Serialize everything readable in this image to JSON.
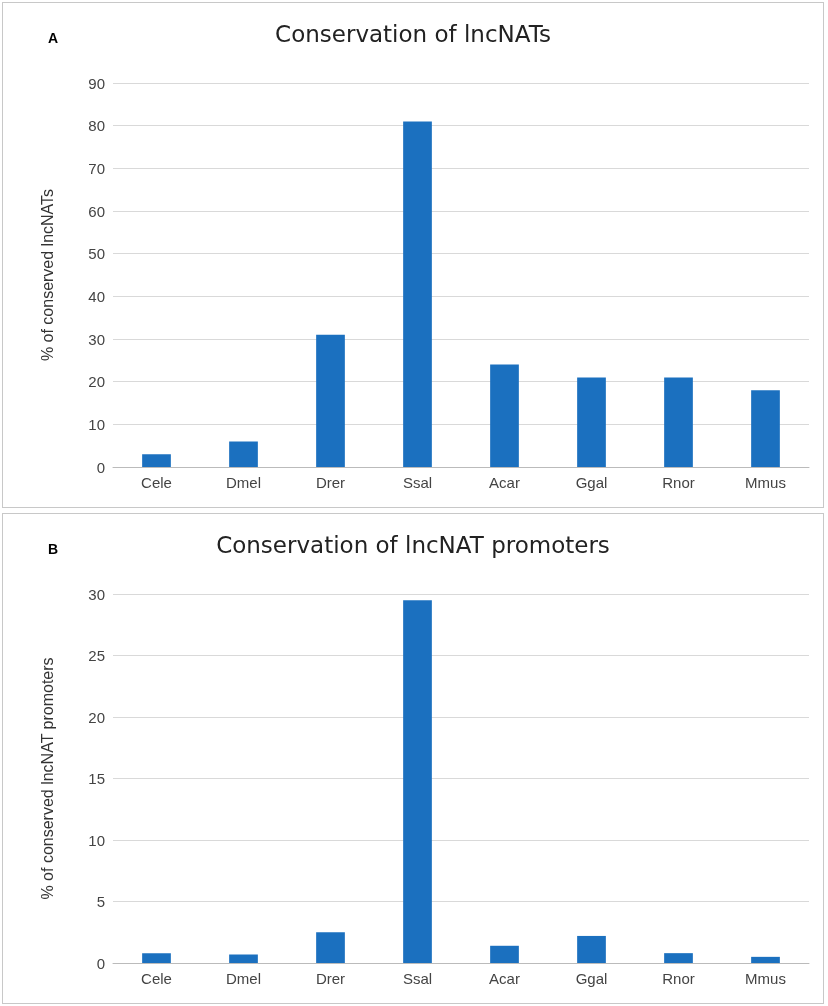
{
  "chart_data": [
    {
      "type": "bar",
      "title": "Conservation of lncNATs",
      "ylabel": "% of conserved lncNATs",
      "annotations": [
        "A"
      ],
      "categories": [
        "Cele",
        "Dmel",
        "Drer",
        "Ssal",
        "Acar",
        "Ggal",
        "Rnor",
        "Mmus"
      ],
      "values": [
        3,
        6,
        31,
        81,
        24,
        21,
        21,
        18
      ],
      "color": "#1b70bf",
      "ylim": [
        0,
        90
      ],
      "yticks": [
        0,
        10,
        20,
        30,
        40,
        50,
        60,
        70,
        80,
        90
      ],
      "grid": "y"
    },
    {
      "type": "bar",
      "title": "Conservation of lncNAT promoters",
      "ylabel": "% of conserved lncNAT promoters",
      "annotations": [
        "B"
      ],
      "categories": [
        "Cele",
        "Dmel",
        "Drer",
        "Ssal",
        "Acar",
        "Ggal",
        "Rnor",
        "Mmus"
      ],
      "values": [
        0.8,
        0.7,
        2.5,
        29.5,
        1.4,
        2.2,
        0.8,
        0.5
      ],
      "color": "#1b70bf",
      "ylim": [
        0,
        30
      ],
      "yticks": [
        0,
        5,
        10,
        15,
        20,
        25,
        30
      ],
      "grid": "y"
    }
  ]
}
